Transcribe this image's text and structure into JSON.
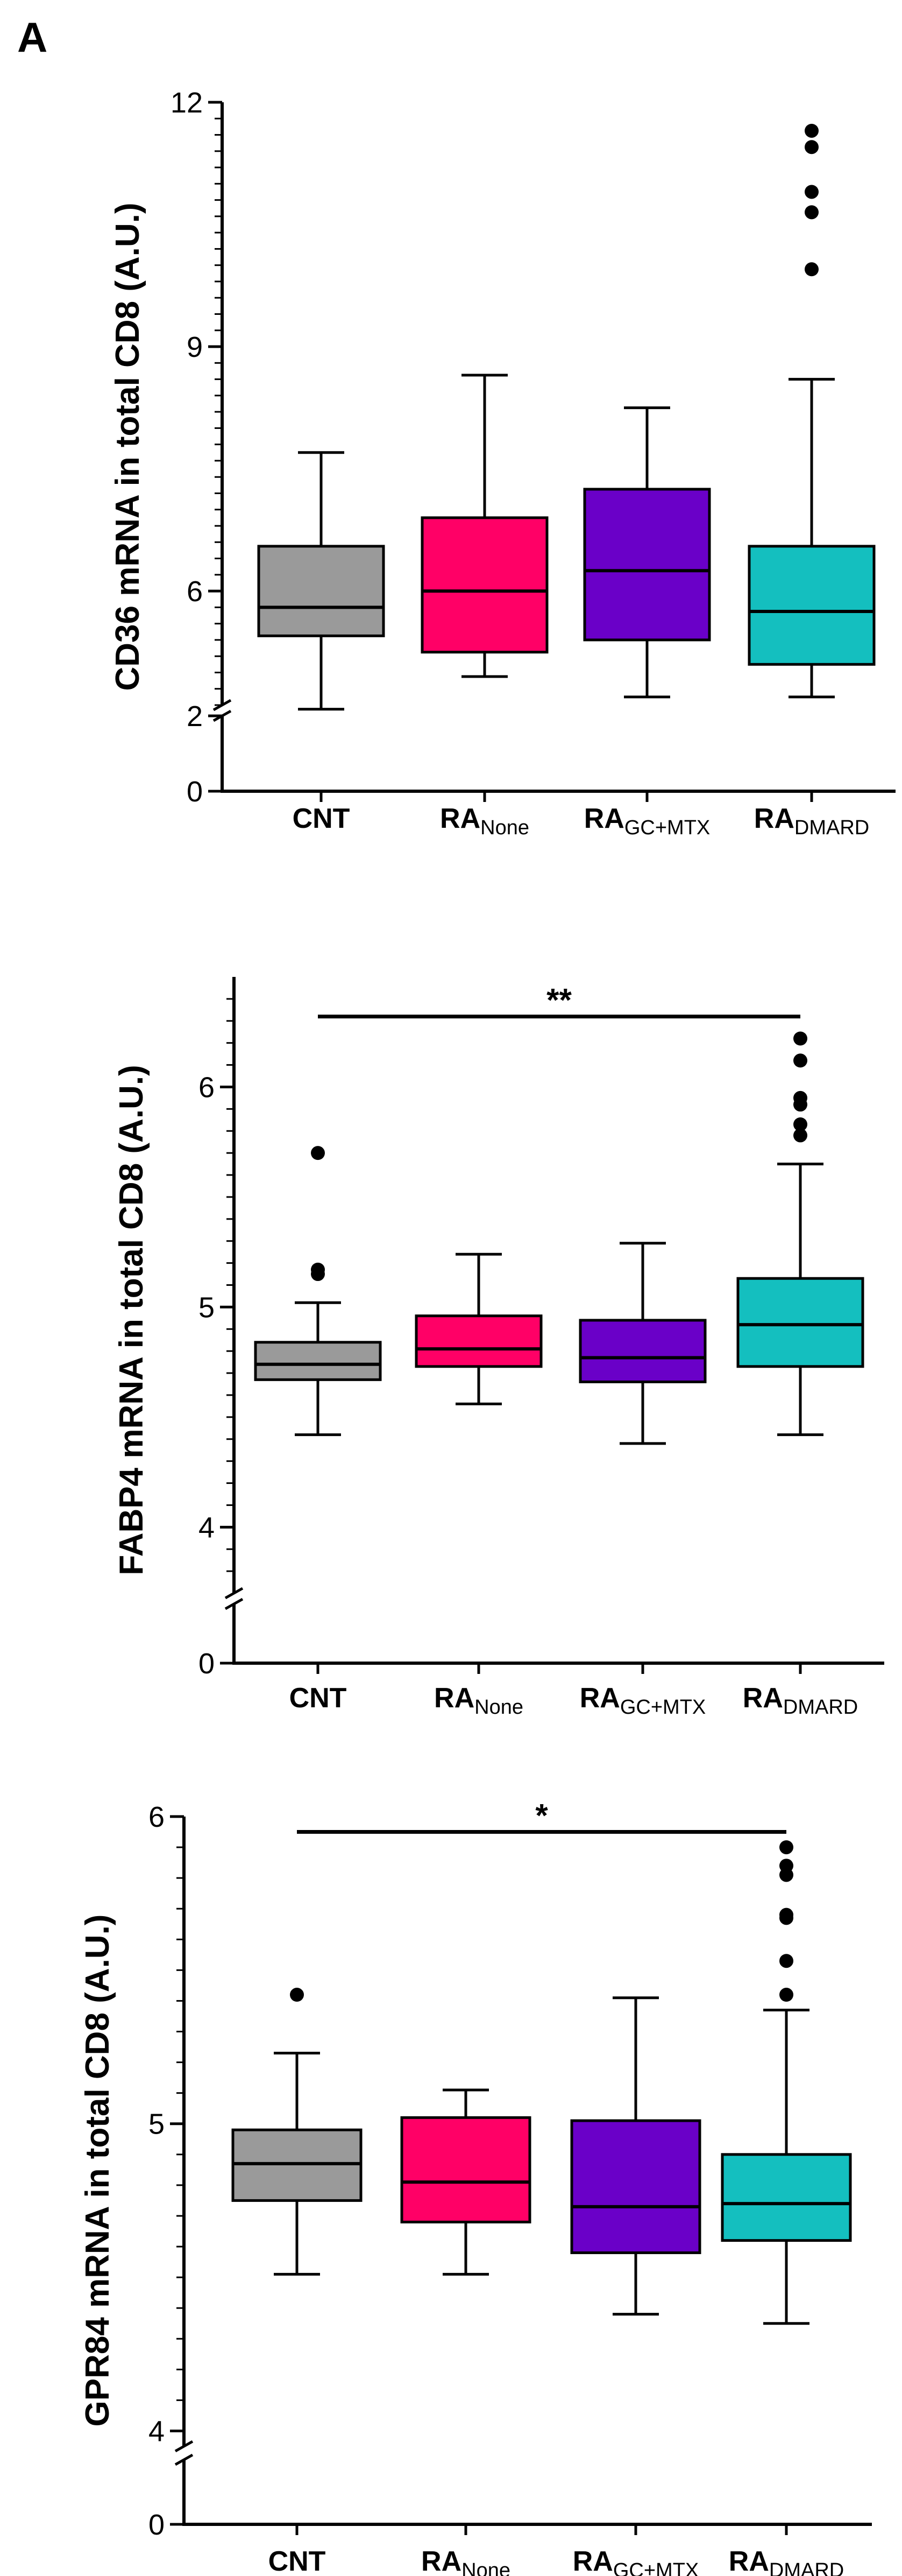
{
  "figure": {
    "panel_label": "A"
  },
  "colors": {
    "CNT": "#9a9a9a",
    "RA_None": "#ff0066",
    "RA_GC+MTX": "#6a00c8",
    "RA_DMARD": "#14bfbf",
    "ink": "#000000"
  },
  "chart_data": [
    {
      "type": "box",
      "ylabel": "CD36 mRNA in total CD8 (A.U.)",
      "axis": {
        "break_low": 2,
        "break_high": 4.6,
        "lower": [
          0,
          2
        ],
        "upper": [
          4.6,
          12
        ]
      },
      "yticks_major": [
        0,
        2,
        6,
        9,
        12
      ],
      "yticks_minor": [
        4.6,
        4.8,
        5,
        5.2,
        5.4,
        5.6,
        5.8,
        6.2,
        6.4,
        6.6,
        6.8,
        7,
        7.2,
        7.4,
        7.6,
        7.8,
        8,
        8.2,
        8.4,
        8.6,
        8.8,
        9.2,
        9.4,
        9.6,
        9.8,
        10,
        10.2,
        10.4,
        10.6,
        10.8,
        11,
        11.2,
        11.4,
        11.6,
        11.8
      ],
      "groups": [
        {
          "key": "CNT",
          "main": "CNT",
          "sub": "",
          "whisker_low": 4.55,
          "q1": 5.45,
          "median": 5.8,
          "q3": 6.55,
          "whisker_high": 7.7,
          "outliers": []
        },
        {
          "key": "RA_None",
          "main": "RA",
          "sub": "None",
          "whisker_low": 4.95,
          "q1": 5.25,
          "median": 6.0,
          "q3": 6.9,
          "whisker_high": 8.65,
          "outliers": []
        },
        {
          "key": "RA_GC+MTX",
          "main": "RA",
          "sub": "GC+MTX",
          "whisker_low": 4.7,
          "q1": 5.4,
          "median": 6.25,
          "q3": 7.25,
          "whisker_high": 8.25,
          "outliers": []
        },
        {
          "key": "RA_DMARD",
          "main": "RA",
          "sub": "DMARD",
          "whisker_low": 4.7,
          "q1": 5.1,
          "median": 5.75,
          "q3": 6.55,
          "whisker_high": 8.6,
          "outliers": [
            9.95,
            10.65,
            10.9,
            11.45,
            11.65
          ]
        }
      ],
      "significance": null
    },
    {
      "type": "box",
      "ylabel": "FABP4 mRNA in total CD8 (A.U.)",
      "axis": {
        "break_low": 1,
        "break_high": 3.7,
        "lower": [
          0,
          1
        ],
        "upper": [
          3.7,
          6.5
        ]
      },
      "yticks_major": [
        0,
        4,
        5,
        6
      ],
      "yticks_minor": [
        3.8,
        3.9,
        4.1,
        4.2,
        4.3,
        4.4,
        4.5,
        4.6,
        4.7,
        4.8,
        4.9,
        5.1,
        5.2,
        5.3,
        5.4,
        5.5,
        5.6,
        5.7,
        5.8,
        5.9,
        6.1,
        6.2,
        6.3,
        6.4
      ],
      "groups": [
        {
          "key": "CNT",
          "main": "CNT",
          "sub": "",
          "whisker_low": 4.42,
          "q1": 4.67,
          "median": 4.74,
          "q3": 4.84,
          "whisker_high": 5.02,
          "outliers": [
            5.15,
            5.17,
            5.7
          ]
        },
        {
          "key": "RA_None",
          "main": "RA",
          "sub": "None",
          "whisker_low": 4.56,
          "q1": 4.73,
          "median": 4.81,
          "q3": 4.96,
          "whisker_high": 5.24,
          "outliers": []
        },
        {
          "key": "RA_GC+MTX",
          "main": "RA",
          "sub": "GC+MTX",
          "whisker_low": 4.38,
          "q1": 4.66,
          "median": 4.77,
          "q3": 4.94,
          "whisker_high": 5.29,
          "outliers": []
        },
        {
          "key": "RA_DMARD",
          "main": "RA",
          "sub": "DMARD",
          "whisker_low": 4.42,
          "q1": 4.73,
          "median": 4.92,
          "q3": 5.13,
          "whisker_high": 5.65,
          "outliers": [
            5.78,
            5.83,
            5.92,
            5.95,
            6.12,
            6.22
          ]
        }
      ],
      "significance": {
        "from": 0,
        "to": 3,
        "label": "**",
        "y": 6.32
      }
    },
    {
      "type": "box",
      "ylabel": "GPR84 mRNA in total CD8 (A.U.)",
      "axis": {
        "break_low": 0.5,
        "break_high": 3.95,
        "lower": [
          0,
          0.5
        ],
        "upper": [
          3.95,
          6
        ]
      },
      "yticks_major": [
        0,
        4,
        5,
        6
      ],
      "yticks_minor": [
        4.1,
        4.2,
        4.3,
        4.4,
        4.5,
        4.6,
        4.7,
        4.8,
        4.9,
        5.1,
        5.2,
        5.3,
        5.4,
        5.5,
        5.6,
        5.7,
        5.8,
        5.9
      ],
      "groups": [
        {
          "key": "CNT",
          "main": "CNT",
          "sub": "",
          "whisker_low": 4.51,
          "q1": 4.75,
          "median": 4.87,
          "q3": 4.98,
          "whisker_high": 5.23,
          "outliers": [
            5.42
          ]
        },
        {
          "key": "RA_None",
          "main": "RA",
          "sub": "None",
          "whisker_low": 4.51,
          "q1": 4.68,
          "median": 4.81,
          "q3": 5.02,
          "whisker_high": 5.11,
          "outliers": []
        },
        {
          "key": "RA_GC+MTX",
          "main": "RA",
          "sub": "GC+MTX",
          "whisker_low": 4.38,
          "q1": 4.58,
          "median": 4.73,
          "q3": 5.01,
          "whisker_high": 5.41,
          "outliers": []
        },
        {
          "key": "RA_DMARD",
          "main": "RA",
          "sub": "DMARD",
          "whisker_low": 4.35,
          "q1": 4.62,
          "median": 4.74,
          "q3": 4.9,
          "whisker_high": 5.37,
          "outliers": [
            5.42,
            5.53,
            5.67,
            5.68,
            5.81,
            5.84,
            5.9
          ]
        }
      ],
      "significance": {
        "from": 0,
        "to": 3,
        "label": "*",
        "y": 5.95
      }
    }
  ]
}
